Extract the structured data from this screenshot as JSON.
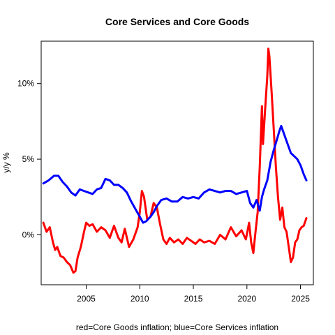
{
  "chart_data": {
    "type": "line",
    "title": "Core Services and Core Goods",
    "xlabel": "red=Core Goods inflation; blue=Core Services inflation",
    "ylabel": "y/y %",
    "xlim": [
      2000.8,
      2026.2
    ],
    "ylim": [
      -3.3,
      12.8
    ],
    "x_ticks": [
      2005,
      2010,
      2015,
      2020,
      2025
    ],
    "x_tick_labels": [
      "2005",
      "2010",
      "2015",
      "2020",
      "2025"
    ],
    "y_ticks": [
      0,
      5,
      10
    ],
    "y_tick_labels": [
      "0%",
      "5%",
      "10%"
    ],
    "grid": false,
    "series": [
      {
        "name": "Core Goods inflation",
        "color": "#ff0000",
        "x": [
          2001.0,
          2001.3,
          2001.6,
          2001.9,
          2002.1,
          2002.3,
          2002.6,
          2002.9,
          2003.2,
          2003.5,
          2003.8,
          2004.0,
          2004.2,
          2004.5,
          2004.8,
          2005.0,
          2005.3,
          2005.6,
          2006.0,
          2006.4,
          2006.8,
          2007.2,
          2007.6,
          2008.0,
          2008.3,
          2008.6,
          2009.0,
          2009.4,
          2009.8,
          2010.0,
          2010.2,
          2010.4,
          2010.7,
          2011.0,
          2011.3,
          2011.6,
          2011.9,
          2012.2,
          2012.5,
          2012.8,
          2013.2,
          2013.6,
          2014.0,
          2014.4,
          2014.8,
          2015.2,
          2015.6,
          2016.0,
          2016.5,
          2017.0,
          2017.5,
          2018.0,
          2018.5,
          2019.0,
          2019.5,
          2019.9,
          2020.2,
          2020.4,
          2020.6,
          2020.8,
          2021.0,
          2021.2,
          2021.4,
          2021.5,
          2021.7,
          2021.9,
          2022.0,
          2022.1,
          2022.3,
          2022.5,
          2022.7,
          2022.9,
          2023.1,
          2023.3,
          2023.5,
          2023.7,
          2023.9,
          2024.1,
          2024.3,
          2024.5,
          2024.7,
          2024.9,
          2025.1,
          2025.3,
          2025.55
        ],
        "values": [
          0.8,
          0.2,
          0.5,
          -0.5,
          -1.0,
          -0.8,
          -1.4,
          -1.5,
          -1.8,
          -2.0,
          -2.5,
          -2.4,
          -1.5,
          -0.8,
          0.2,
          0.8,
          0.6,
          0.7,
          0.2,
          0.5,
          0.3,
          -0.2,
          0.6,
          -0.2,
          -0.5,
          0.4,
          -0.8,
          -0.3,
          0.5,
          1.5,
          2.9,
          2.5,
          1.0,
          1.2,
          2.1,
          1.8,
          0.7,
          -0.3,
          -0.6,
          -0.2,
          -0.5,
          -0.3,
          -0.6,
          -0.2,
          -0.4,
          -0.6,
          -0.3,
          -0.5,
          -0.4,
          -0.6,
          0.0,
          -0.3,
          0.5,
          -0.1,
          0.3,
          -0.3,
          0.8,
          -0.5,
          -1.2,
          0.2,
          1.5,
          4.5,
          8.5,
          6.0,
          8.3,
          10.5,
          12.3,
          11.8,
          9.5,
          7.0,
          4.5,
          2.5,
          1.0,
          1.8,
          0.5,
          0.2,
          -0.8,
          -1.8,
          -1.5,
          -0.5,
          -0.3,
          0.3,
          0.5,
          0.6,
          1.1
        ]
      },
      {
        "name": "Core Services inflation",
        "color": "#0000ff",
        "x": [
          2001.0,
          2001.5,
          2002.0,
          2002.4,
          2002.8,
          2003.2,
          2003.6,
          2004.0,
          2004.4,
          2004.8,
          2005.2,
          2005.6,
          2006.0,
          2006.4,
          2006.8,
          2007.2,
          2007.6,
          2008.0,
          2008.4,
          2008.8,
          2009.2,
          2009.6,
          2010.0,
          2010.3,
          2010.6,
          2011.0,
          2011.3,
          2011.6,
          2012.0,
          2012.5,
          2013.0,
          2013.5,
          2014.0,
          2014.5,
          2015.0,
          2015.5,
          2016.0,
          2016.5,
          2017.0,
          2017.5,
          2018.0,
          2018.5,
          2019.0,
          2019.5,
          2020.0,
          2020.3,
          2020.6,
          2020.9,
          2021.2,
          2021.4,
          2021.6,
          2021.9,
          2022.2,
          2022.5,
          2022.8,
          2023.0,
          2023.2,
          2023.5,
          2023.8,
          2024.1,
          2024.4,
          2024.7,
          2025.0,
          2025.3,
          2025.55
        ],
        "values": [
          3.4,
          3.6,
          3.9,
          3.9,
          3.5,
          3.2,
          2.8,
          2.6,
          3.0,
          2.9,
          2.8,
          2.7,
          3.0,
          3.1,
          3.7,
          3.6,
          3.3,
          3.3,
          3.1,
          2.8,
          2.2,
          1.7,
          1.2,
          0.8,
          0.9,
          1.2,
          1.5,
          1.9,
          2.3,
          2.4,
          2.2,
          2.2,
          2.5,
          2.4,
          2.5,
          2.4,
          2.8,
          3.0,
          2.9,
          2.8,
          2.9,
          2.9,
          2.7,
          2.8,
          2.9,
          2.1,
          1.8,
          2.3,
          1.6,
          2.5,
          3.0,
          3.6,
          4.8,
          5.6,
          6.3,
          6.8,
          7.2,
          6.6,
          6.0,
          5.4,
          5.2,
          5.0,
          4.6,
          4.0,
          3.6
        ]
      }
    ]
  }
}
